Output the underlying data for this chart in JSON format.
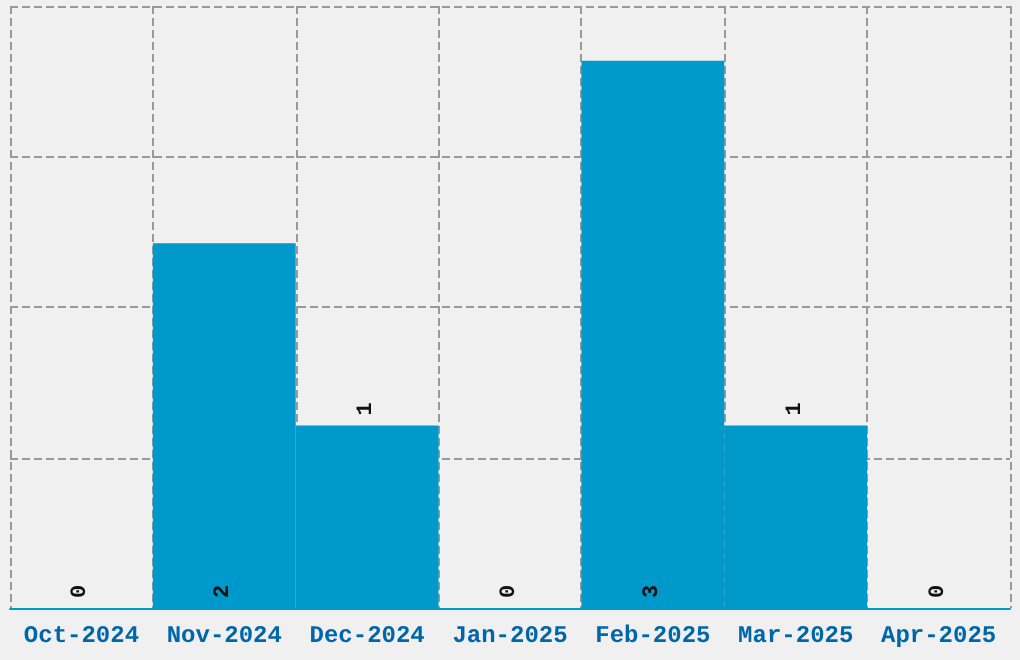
{
  "chart_data": {
    "type": "bar",
    "categories": [
      "Oct-2024",
      "Nov-2024",
      "Dec-2024",
      "Jan-2025",
      "Feb-2025",
      "Mar-2025",
      "Apr-2025"
    ],
    "values": [
      0,
      2,
      1,
      0,
      3,
      1,
      0
    ],
    "color": "#0099cc",
    "data_labels": true,
    "grid": true,
    "tick_labels": "x",
    "ylim": [
      0,
      3.3
    ],
    "yticks": [
      {
        "value": 0,
        "label": null
      },
      {
        "value": 0.825,
        "label": null
      },
      {
        "value": 1.65,
        "label": null
      },
      {
        "value": 2.475,
        "label": null
      },
      {
        "value": 3.3,
        "label": null
      }
    ]
  }
}
